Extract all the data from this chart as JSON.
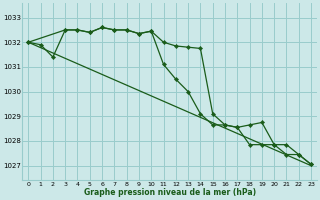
{
  "title": "Graphe pression niveau de la mer (hPa)",
  "bg_color": "#cce8e8",
  "grid_color": "#99cccc",
  "line_color": "#1a5c1a",
  "xlim": [
    -0.5,
    23.5
  ],
  "ylim": [
    1026.4,
    1033.6
  ],
  "yticks": [
    1027,
    1028,
    1029,
    1030,
    1031,
    1032,
    1033
  ],
  "xticks": [
    0,
    1,
    2,
    3,
    4,
    5,
    6,
    7,
    8,
    9,
    10,
    11,
    12,
    13,
    14,
    15,
    16,
    17,
    18,
    19,
    20,
    21,
    22,
    23
  ],
  "series_top": {
    "x": [
      0,
      1,
      2,
      3,
      4,
      5,
      6,
      7,
      8,
      9,
      10,
      11,
      12,
      13,
      14,
      15,
      16,
      17,
      18,
      19,
      20,
      21,
      22,
      23
    ],
    "y": [
      1032.0,
      1031.9,
      1031.4,
      1032.5,
      1032.5,
      1032.4,
      1032.6,
      1032.5,
      1032.5,
      1032.35,
      1032.45,
      1032.0,
      1031.85,
      1031.8,
      1031.75,
      1029.1,
      1028.65,
      1028.55,
      1028.65,
      1028.75,
      1027.85,
      1027.45,
      1027.45,
      1027.05
    ]
  },
  "series_mid": {
    "x": [
      0,
      23
    ],
    "y": [
      1032.0,
      1027.0
    ]
  },
  "series_bot": {
    "x": [
      0,
      3,
      4,
      5,
      6,
      7,
      8,
      9,
      10,
      11,
      12,
      13,
      14,
      15,
      16,
      17,
      18,
      19,
      20,
      21,
      22,
      23
    ],
    "y": [
      1032.0,
      1032.5,
      1032.5,
      1032.4,
      1032.6,
      1032.5,
      1032.5,
      1032.35,
      1032.45,
      1031.1,
      1030.5,
      1030.0,
      1029.1,
      1028.65,
      1028.65,
      1028.55,
      1027.85,
      1027.85,
      1027.85,
      1027.85,
      1027.45,
      1027.05
    ]
  }
}
